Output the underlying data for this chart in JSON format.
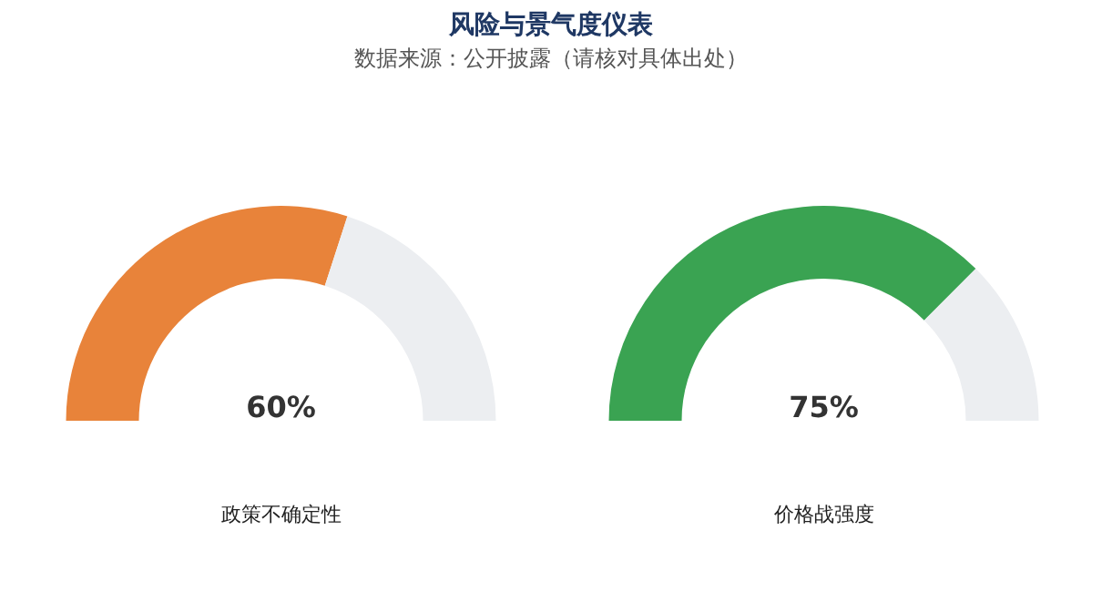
{
  "chart_data": [
    {
      "type": "donut",
      "title": "风险与景气度仪表",
      "subtitle": "数据来源：公开披露（请核对具体出处）",
      "xlabel": "政策不确定性",
      "categories": [
        null,
        null
      ],
      "values": [
        60,
        40
      ],
      "colors": [
        "#e8833a",
        "#eceef1"
      ],
      "value_labels": [
        "60%",
        null
      ]
    },
    {
      "type": "donut",
      "xlabel": "价格战强度",
      "categories": [
        null,
        null
      ],
      "values": [
        75,
        25
      ],
      "colors": [
        "#3aa352",
        "#eceef1"
      ],
      "value_labels": [
        "75%",
        null
      ]
    }
  ]
}
